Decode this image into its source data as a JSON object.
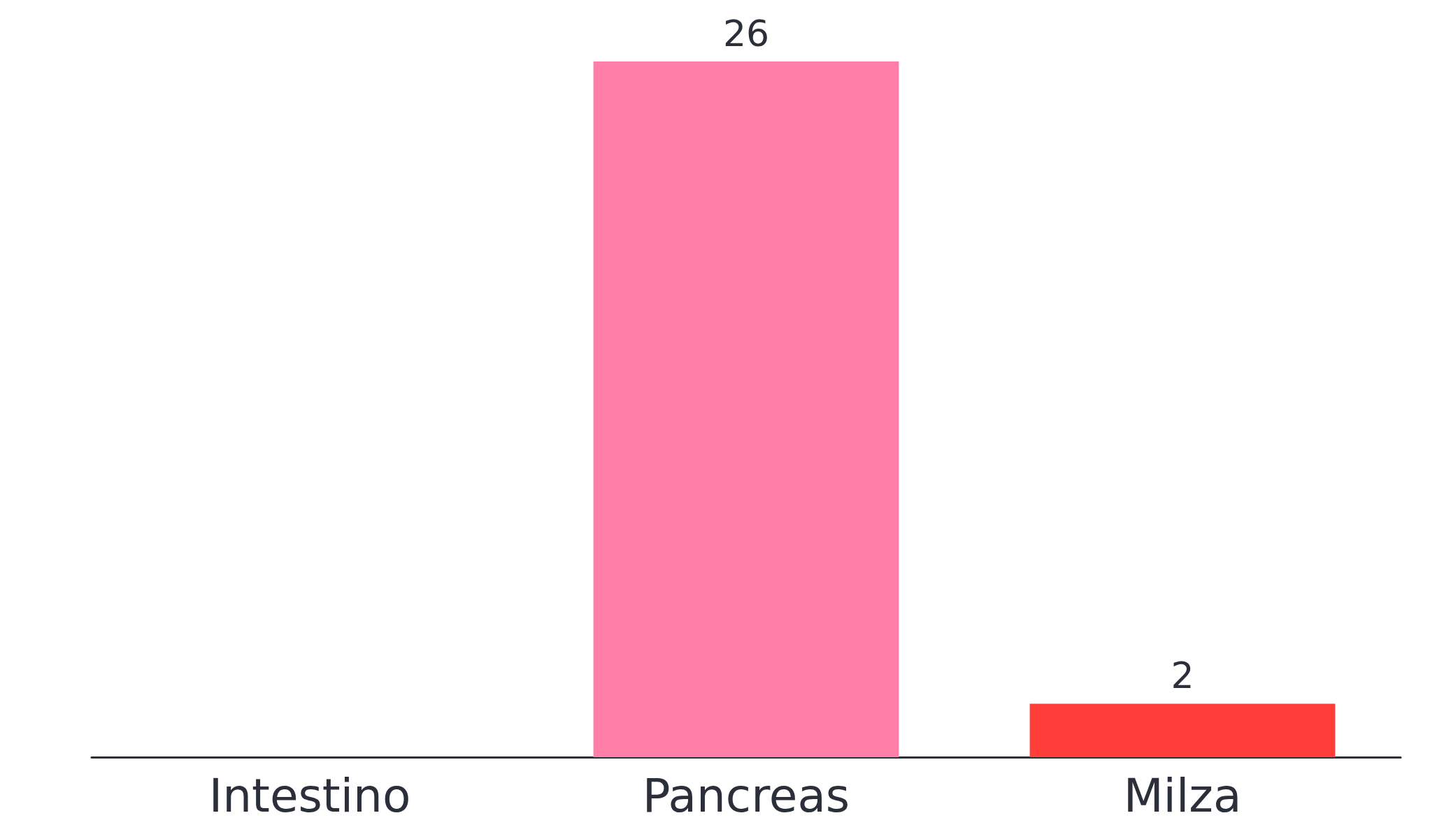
{
  "chart_data": {
    "type": "bar",
    "categories": [
      "Intestino",
      "Pancreas",
      "Milza"
    ],
    "values": [
      null,
      26,
      2
    ],
    "colors": [
      "#ff7fa8",
      "#ff7fa8",
      "#ff3e3a"
    ],
    "data_labels": true
  }
}
